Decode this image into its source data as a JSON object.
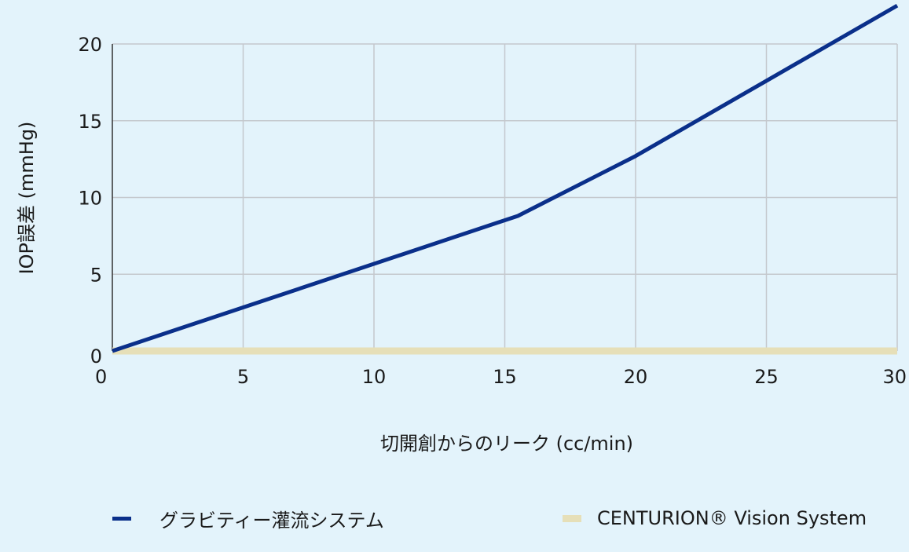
{
  "chart_data": {
    "type": "line",
    "xlabel": "切開創からのリーク (cc/min)",
    "ylabel": "IOP誤差 (mmHg)",
    "xlim": [
      0,
      30
    ],
    "ylim": [
      0,
      20
    ],
    "x_ticks": [
      0,
      5,
      10,
      15,
      20,
      25,
      30
    ],
    "y_ticks": [
      0,
      5,
      10,
      15,
      20
    ],
    "grid": "vertical and horizontal",
    "legend_position": "bottom",
    "series": [
      {
        "name": "グラビティー灌流システム",
        "color": "#0a2f8a",
        "points": [
          [
            0,
            0
          ],
          [
            15.5,
            8.8
          ],
          [
            20,
            12.7
          ],
          [
            25,
            17.6
          ],
          [
            30,
            22.5
          ]
        ]
      },
      {
        "name": "CENTURION® Vision System",
        "color": "#e6dfb8",
        "points": [
          [
            0,
            0
          ],
          [
            30,
            0
          ]
        ]
      }
    ]
  }
}
